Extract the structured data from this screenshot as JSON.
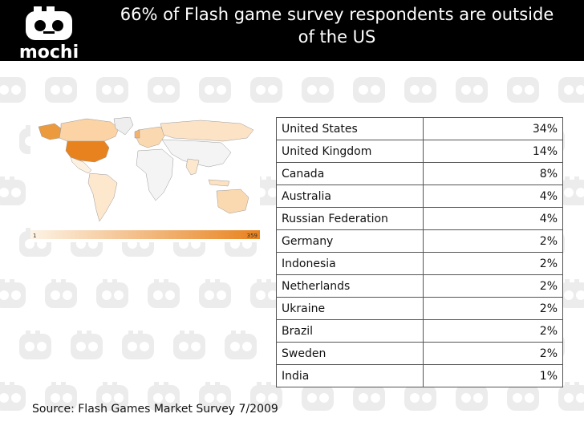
{
  "header": {
    "logo_text": "mochi",
    "title_line1": "66% of Flash game survey respondents are outside",
    "title_line2": "of the US"
  },
  "map": {
    "legend_min": "1",
    "legend_max": "359",
    "colors": {
      "low": "#fdf1e2",
      "high": "#e8821e",
      "land_none": "#eeeeee",
      "water": "#ffffff"
    }
  },
  "table": {
    "rows": [
      {
        "country": "United States",
        "percent": "34%"
      },
      {
        "country": "United Kingdom",
        "percent": "14%"
      },
      {
        "country": "Canada",
        "percent": "8%"
      },
      {
        "country": "Australia",
        "percent": "4%"
      },
      {
        "country": "Russian Federation",
        "percent": "4%"
      },
      {
        "country": "Germany",
        "percent": "2%"
      },
      {
        "country": "Indonesia",
        "percent": "2%"
      },
      {
        "country": "Netherlands",
        "percent": "2%"
      },
      {
        "country": "Ukraine",
        "percent": "2%"
      },
      {
        "country": "Brazil",
        "percent": "2%"
      },
      {
        "country": "Sweden",
        "percent": "2%"
      },
      {
        "country": "India",
        "percent": "1%"
      }
    ]
  },
  "footer": {
    "source": "Source: Flash Games Market Survey 7/2009"
  }
}
